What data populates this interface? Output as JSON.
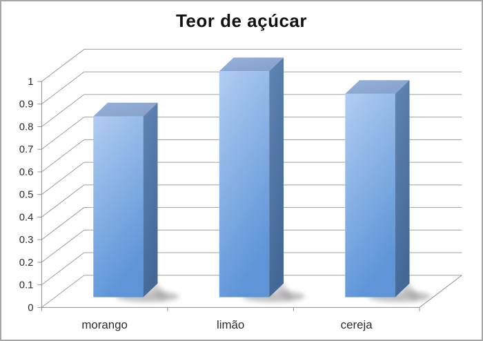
{
  "window": {
    "background": "#ffffff",
    "border_color": "#a6a6a6"
  },
  "chart_data": {
    "type": "bar",
    "style": "3d-column",
    "title": "Teor de açúcar",
    "categories": [
      "morango",
      "limão",
      "cereja"
    ],
    "values": [
      0.8,
      1.0,
      0.9
    ],
    "xlabel": "",
    "ylabel": "",
    "ylim": [
      0,
      1
    ],
    "ytick_step": 0.1,
    "ytick_labels": [
      "0",
      "0.1",
      "0.2",
      "0.3",
      "0.4",
      "0.5",
      "0.6",
      "0.7",
      "0.8",
      "0.9",
      "1"
    ],
    "grid": true,
    "legend": "none",
    "colors": {
      "bar_front_light": "#b2cdf2",
      "bar_front_dark": "#5e95d8",
      "bar_top_light": "#95b1db",
      "bar_top_dark": "#85a1ca",
      "bar_side_light": "#6186b5",
      "bar_side_dark": "#436898",
      "gridline": "#9d9d9d",
      "axis_line": "#8c8c8c",
      "tick_label": "#2b2b2b",
      "title_color": "#121212",
      "shadow": "#8f8f8f"
    }
  }
}
